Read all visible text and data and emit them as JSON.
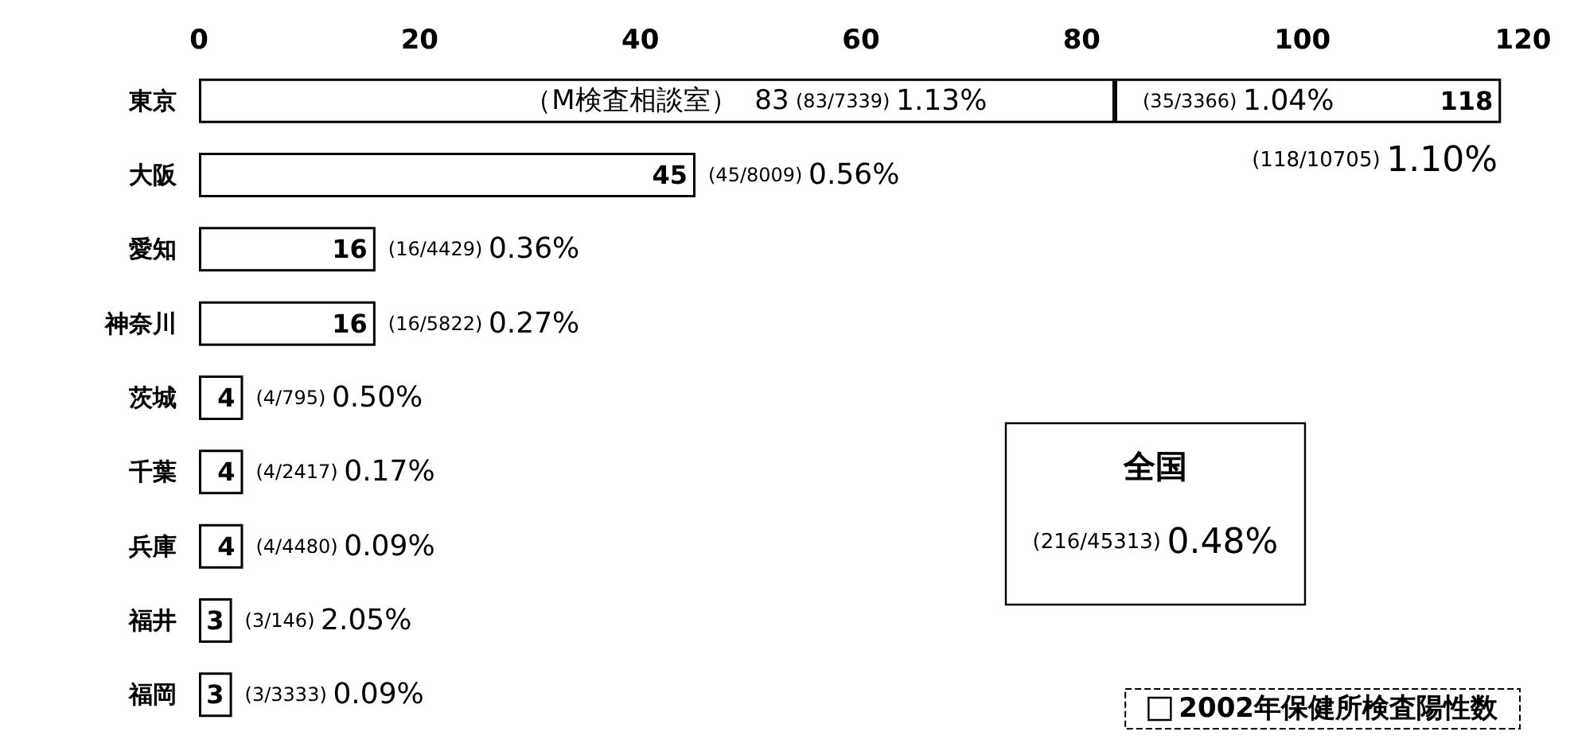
{
  "chart_data": {
    "type": "bar",
    "orientation": "horizontal",
    "stacked": true,
    "categories": [
      "東京",
      "大阪",
      "愛知",
      "神奈川",
      "茨城",
      "千葉",
      "兵庫",
      "福井",
      "福岡"
    ],
    "series": [
      {
        "name": "（M検査相談室）",
        "color": "#ffffff",
        "values": [
          83,
          null,
          null,
          null,
          null,
          null,
          null,
          null,
          null
        ],
        "value_labels": [
          "83",
          null,
          null,
          null,
          null,
          null,
          null,
          null,
          null
        ]
      },
      {
        "name": "2002年保健所検査陽性数",
        "color": "#ffffff",
        "values": [
          35,
          45,
          16,
          16,
          4,
          4,
          4,
          3,
          3
        ],
        "value_labels": [
          null,
          "45",
          "16",
          "16",
          "4",
          "4",
          "4",
          "3",
          "3"
        ]
      }
    ],
    "totals": [
      "118",
      null,
      null,
      null,
      null,
      null,
      null,
      null,
      null
    ],
    "xlim": [
      0,
      120
    ],
    "xticks": [
      0,
      20,
      40,
      60,
      80,
      100,
      120
    ],
    "grid": false,
    "legend": "bottom right",
    "annotations": [
      "(83/7339) 1.13%",
      "(35/3366) 1.04%",
      {
        "text": "(45/8009) 0.56%",
        "x": 45,
        "y": "大阪"
      },
      {
        "text": "(16/4429) 0.36%",
        "x": 16,
        "y": "愛知"
      },
      {
        "text": "(16/5822) 0.27%",
        "x": 16,
        "y": "神奈川"
      },
      {
        "text": "(4/795) 0.50%",
        "x": 4,
        "y": "茨城"
      },
      {
        "text": "(4/2417) 0.17%",
        "x": 4,
        "y": "千葉"
      },
      {
        "text": "(4/4480) 0.09%",
        "x": 4,
        "y": "兵庫"
      },
      {
        "text": "(3/146) 2.05%",
        "x": 3,
        "y": "福井"
      },
      {
        "text": "(3/3333) 0.09%",
        "x": 3,
        "y": "福岡"
      },
      "(118/10705) 1.10%",
      "全国",
      "(216/45313) 0.48%"
    ]
  }
}
